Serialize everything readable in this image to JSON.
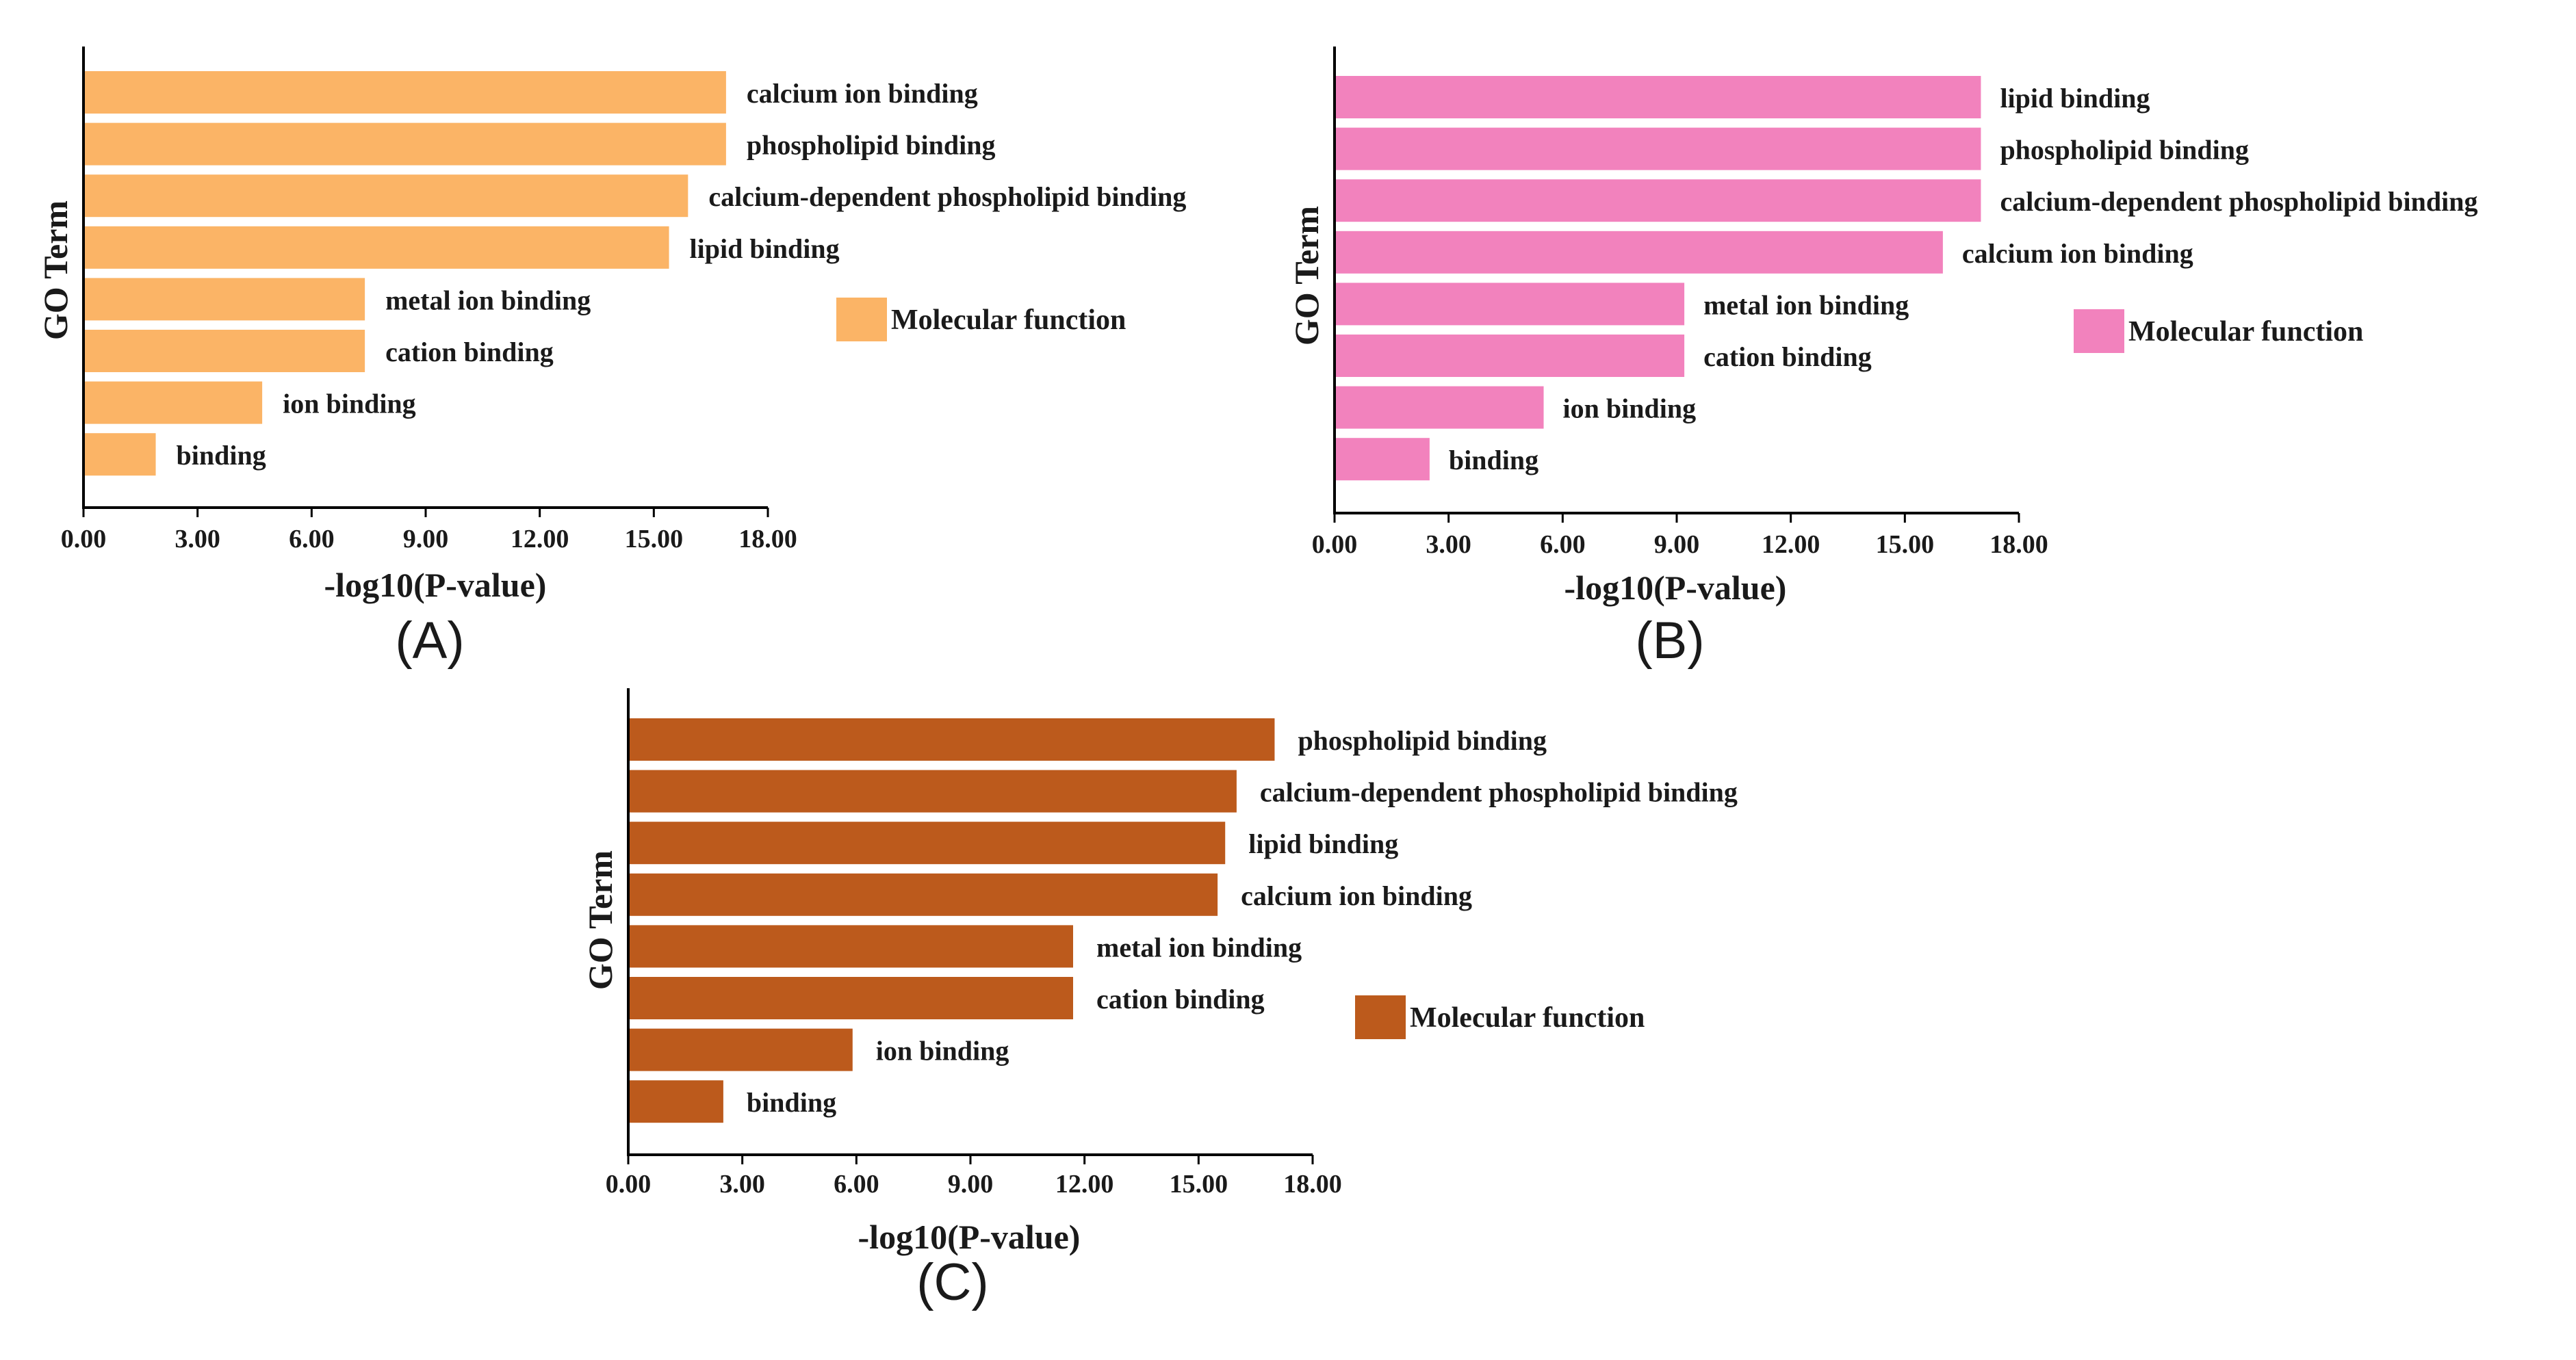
{
  "figure": {
    "panels": [
      {
        "label": "(A)",
        "color": "#FBB466"
      },
      {
        "label": "(B)",
        "color": "#F282BD"
      },
      {
        "label": "(C)",
        "color": "#BC5A1C"
      }
    ]
  },
  "chart_data": [
    {
      "type": "bar",
      "orientation": "horizontal",
      "panel": "(A)",
      "categories": [
        "calcium ion binding",
        "phospholipid binding",
        "calcium-dependent phospholipid binding",
        "lipid binding",
        "metal ion binding",
        "cation binding",
        "ion binding",
        "binding"
      ],
      "values": [
        16.9,
        16.9,
        15.9,
        15.4,
        7.4,
        7.4,
        4.7,
        1.9
      ],
      "title": "",
      "xlabel": "-log10(P-value)",
      "ylabel": "GO Term",
      "xlim": [
        0,
        18
      ],
      "ticks": [
        "0.00",
        "3.00",
        "6.00",
        "9.00",
        "12.00",
        "15.00",
        "18.00"
      ],
      "legend": "Molecular function",
      "legend_position": "right",
      "color": "#FBB466"
    },
    {
      "type": "bar",
      "orientation": "horizontal",
      "panel": "(B)",
      "categories": [
        "lipid binding",
        "phospholipid binding",
        "calcium-dependent phospholipid binding",
        "calcium ion binding",
        "metal ion binding",
        "cation binding",
        "ion binding",
        "binding"
      ],
      "values": [
        17.0,
        17.0,
        17.0,
        16.0,
        9.2,
        9.2,
        5.5,
        2.5
      ],
      "title": "",
      "xlabel": "-log10(P-value)",
      "ylabel": "GO Term",
      "xlim": [
        0,
        18
      ],
      "ticks": [
        "0.00",
        "3.00",
        "6.00",
        "9.00",
        "12.00",
        "15.00",
        "18.00"
      ],
      "legend": "Molecular function",
      "legend_position": "right",
      "color": "#F282BD"
    },
    {
      "type": "bar",
      "orientation": "horizontal",
      "panel": "(C)",
      "categories": [
        "phospholipid binding",
        "calcium-dependent phospholipid binding",
        "lipid binding",
        "calcium ion binding",
        "metal ion binding",
        "cation binding",
        "ion binding",
        "binding"
      ],
      "values": [
        17.0,
        16.0,
        15.7,
        15.5,
        11.7,
        11.7,
        5.9,
        2.5
      ],
      "title": "",
      "xlabel": "-log10(P-value)",
      "ylabel": "GO Term",
      "xlim": [
        0,
        18
      ],
      "ticks": [
        "0.00",
        "3.00",
        "6.00",
        "9.00",
        "12.00",
        "15.00",
        "18.00"
      ],
      "legend": "Molecular function",
      "legend_position": "right",
      "color": "#BC5A1C"
    }
  ]
}
